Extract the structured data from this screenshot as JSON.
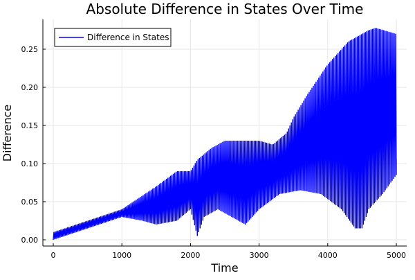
{
  "chart_data": {
    "type": "line",
    "title": "Absolute Difference in States Over Time",
    "xlabel": "Time",
    "ylabel": "Difference",
    "xlim": [
      -150,
      5150
    ],
    "ylim": [
      -0.008,
      0.288
    ],
    "xticks": [
      0,
      1000,
      2000,
      3000,
      4000,
      5000
    ],
    "xtick_labels": [
      "0",
      "1000",
      "2000",
      "3000",
      "4000",
      "5000"
    ],
    "yticks": [
      0,
      0.05,
      0.1,
      0.15,
      0.2,
      0.25
    ],
    "ytick_labels": [
      "0.00",
      "0.05",
      "0.10",
      "0.15",
      "0.20",
      "0.25"
    ],
    "grid": true,
    "legend_position": "top-left",
    "series": [
      {
        "name": "Difference in States",
        "color": "#0000ff",
        "style": "rapid oscillation between lower and upper envelope",
        "upper_envelope": {
          "x": [
            0,
            500,
            1000,
            1500,
            1800,
            2000,
            2100,
            2300,
            2500,
            2700,
            3000,
            3200,
            3400,
            3500,
            3700,
            4000,
            4300,
            4600,
            4700,
            5000
          ],
          "y": [
            0.01,
            0.025,
            0.04,
            0.07,
            0.09,
            0.09,
            0.105,
            0.12,
            0.13,
            0.13,
            0.13,
            0.125,
            0.14,
            0.16,
            0.19,
            0.23,
            0.26,
            0.275,
            0.278,
            0.27
          ]
        },
        "lower_envelope": {
          "x": [
            0,
            500,
            1000,
            1300,
            1500,
            1800,
            2000,
            2100,
            2200,
            2400,
            2600,
            2800,
            3000,
            3300,
            3600,
            3900,
            4200,
            4400,
            4500,
            4600,
            4800,
            5000
          ],
          "y": [
            0.0,
            0.015,
            0.03,
            0.025,
            0.02,
            0.025,
            0.04,
            0.005,
            0.03,
            0.04,
            0.03,
            0.02,
            0.04,
            0.06,
            0.065,
            0.06,
            0.04,
            0.015,
            0.015,
            0.04,
            0.06,
            0.085
          ]
        }
      }
    ]
  }
}
